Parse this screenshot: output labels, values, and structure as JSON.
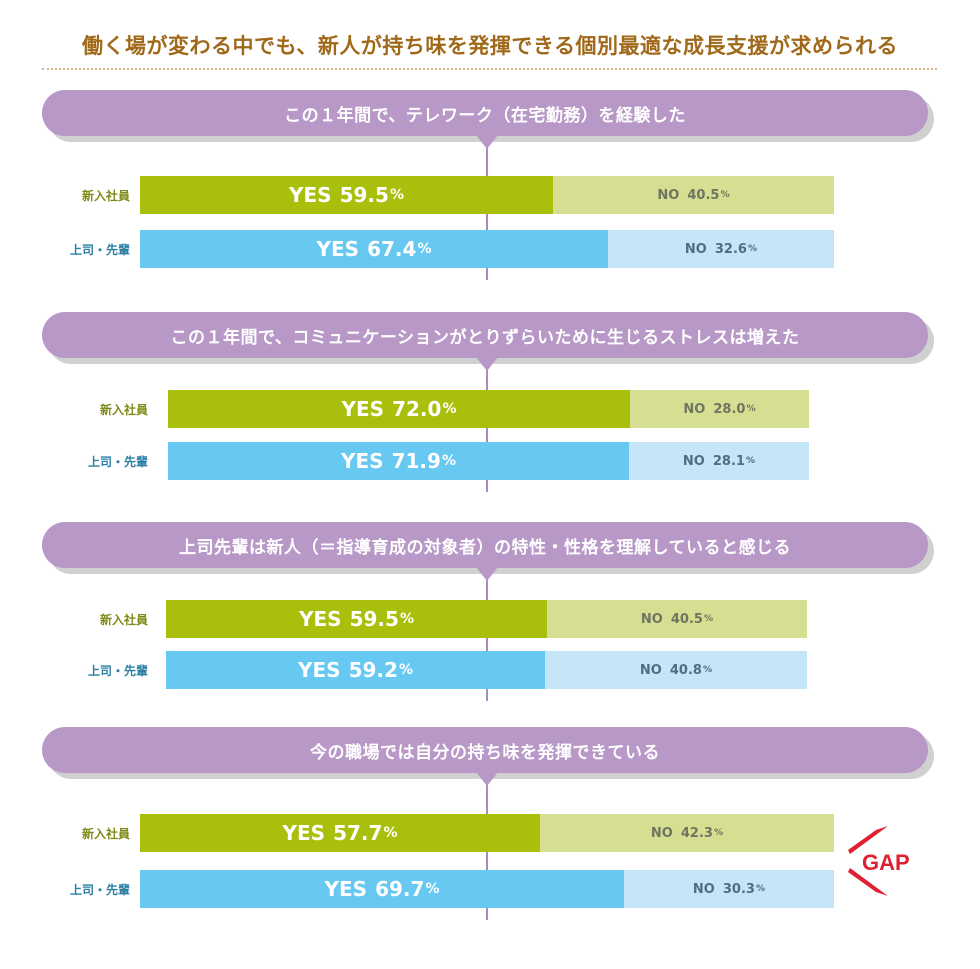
{
  "title": "働く場が変わる中でも、新人が持ち味を発揮できる個別最適な成長支援が求められる",
  "colors": {
    "title": "#a0691a",
    "pill": "#b798c6",
    "newcomer_yes": "#aabf0c",
    "newcomer_no": "#d6de92",
    "boss_yes": "#67c8f2",
    "boss_no": "#c4e6f8",
    "newcomer_label": "#7f8a16",
    "boss_label": "#2d7fa6",
    "gap": "#e02030"
  },
  "gap_label": "GAP",
  "chart_data": [
    {
      "type": "bar",
      "title": "この１年間で、テレワーク（在宅勤務）を経験した",
      "rows": [
        {
          "name": "新入社員",
          "yes": 59.5,
          "no": 40.5
        },
        {
          "name": "上司・先輩",
          "yes": 67.4,
          "no": 32.6
        }
      ]
    },
    {
      "type": "bar",
      "title": "この１年間で、コミュニケーションがとりずらいために生じるストレスは増えた",
      "rows": [
        {
          "name": "新入社員",
          "yes": 72.0,
          "no": 28.0
        },
        {
          "name": "上司・先輩",
          "yes": 71.9,
          "no": 28.1
        }
      ]
    },
    {
      "type": "bar",
      "title": "上司先輩は新人（＝指導育成の対象者）の特性・性格を理解していると感じる",
      "rows": [
        {
          "name": "新入社員",
          "yes": 59.5,
          "no": 40.5
        },
        {
          "name": "上司・先輩",
          "yes": 59.2,
          "no": 40.8
        }
      ]
    },
    {
      "type": "bar",
      "title": "今の職場では自分の持ち味を発揮できている",
      "rows": [
        {
          "name": "新入社員",
          "yes": 57.7,
          "no": 42.3
        },
        {
          "name": "上司・先輩",
          "yes": 69.7,
          "no": 30.3
        }
      ]
    }
  ],
  "labels": {
    "yes": "YES",
    "no": "NO",
    "pct": "%"
  }
}
